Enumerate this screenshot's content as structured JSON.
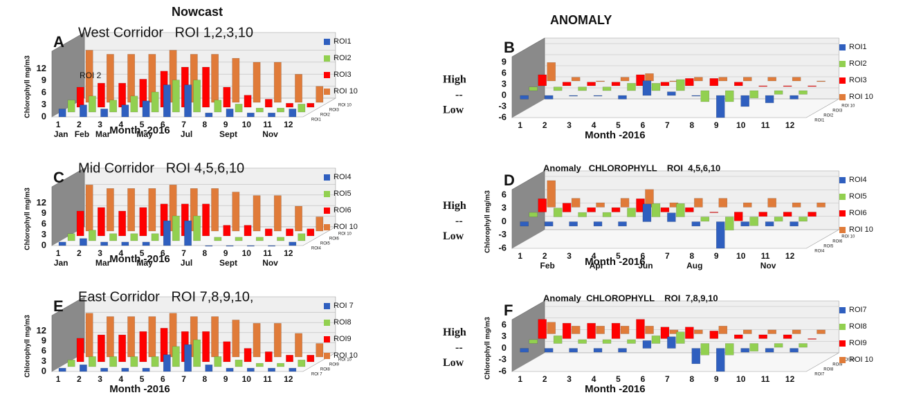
{
  "headers": {
    "nowcast": "Nowcast",
    "anomaly": "ANOMALY"
  },
  "chart_data": [
    {
      "type": "bar",
      "panel": "A",
      "title": "West Corridor   ROI 1,2,3,10",
      "ylabel": "Chlorophyll mg/m3",
      "xlabel": "Month -2016",
      "categories": [
        "1",
        "2",
        "3",
        "4",
        "5",
        "6",
        "7",
        "8",
        "9",
        "10",
        "11",
        "12"
      ],
      "months": [
        "Jan",
        "Feb",
        "Mar",
        null,
        "May",
        null,
        "Jul",
        null,
        "Sept",
        null,
        "Nov",
        null
      ],
      "annotations": [
        "ROI 2"
      ],
      "series": [
        {
          "name": "ROI1",
          "color": "#2f5fbf",
          "values": [
            2,
            3,
            2,
            3,
            4,
            8,
            8,
            1,
            2,
            1,
            1,
            2
          ]
        },
        {
          "name": "ROI2",
          "color": "#92d050",
          "values": [
            3,
            4,
            3,
            4,
            5,
            8,
            8,
            3,
            2,
            1,
            1,
            2
          ]
        },
        {
          "name": "ROI3",
          "color": "#ff0000",
          "values": [
            5,
            6,
            6,
            7,
            9,
            10,
            10,
            5,
            3,
            2,
            1,
            1
          ]
        },
        {
          "name": "ROI 10",
          "color": "#e07b39",
          "values": [
            13,
            12,
            12,
            12,
            13,
            12,
            12,
            11,
            10,
            10,
            7,
            4
          ]
        }
      ],
      "ylim": [
        0,
        15
      ],
      "yticks": [
        0,
        3,
        6,
        9,
        12
      ]
    },
    {
      "type": "bar",
      "panel": "B",
      "xlabel": "Month -2016",
      "categories": [
        "1",
        "2",
        "3",
        "4",
        "5",
        "6",
        "7",
        "8",
        "9",
        "10",
        "11",
        "12"
      ],
      "annotations": [
        "High",
        "--",
        "Low"
      ],
      "series": [
        {
          "name": "ROI1",
          "color": "#2f5fbf",
          "values": [
            -1,
            -1,
            0,
            0,
            -1,
            4,
            1,
            0,
            -6,
            -3,
            -2,
            -1
          ]
        },
        {
          "name": "ROI2",
          "color": "#92d050",
          "values": [
            1,
            1,
            1,
            1,
            2,
            2,
            3,
            -3,
            -3,
            -2,
            -1,
            -1
          ]
        },
        {
          "name": "ROI3",
          "color": "#ff0000",
          "values": [
            3,
            1,
            1,
            1,
            3,
            1,
            2,
            2,
            1,
            0,
            0,
            0
          ]
        },
        {
          "name": "ROI 10",
          "color": "#e07b39",
          "values": [
            5,
            1,
            0,
            1,
            2,
            0,
            1,
            1,
            1,
            1,
            1,
            0
          ]
        }
      ],
      "ylim": [
        -6,
        9
      ],
      "yticks": [
        -6,
        -3,
        0,
        3,
        6,
        9
      ]
    },
    {
      "type": "bar",
      "panel": "C",
      "title": "Mid Corridor   ROI 4,5,6,10",
      "ylabel": "Chlorophyll mg/m3",
      "xlabel": "Month -2016",
      "categories": [
        "1",
        "2",
        "3",
        "4",
        "5",
        "6",
        "7",
        "8",
        "9",
        "10",
        "11",
        "12"
      ],
      "months": [
        "Jan",
        null,
        "Mar",
        null,
        "May",
        null,
        "Jul",
        null,
        "Sept",
        null,
        "Nov",
        null
      ],
      "series": [
        {
          "name": "ROI4",
          "color": "#2f5fbf",
          "values": [
            1,
            2,
            1,
            1,
            1,
            7,
            7,
            0,
            0,
            0,
            0,
            1
          ]
        },
        {
          "name": "ROI5",
          "color": "#92d050",
          "values": [
            2,
            3,
            2,
            2,
            2,
            7,
            7,
            1,
            1,
            1,
            1,
            2
          ]
        },
        {
          "name": "ROI6",
          "color": "#ff0000",
          "values": [
            7,
            8,
            7,
            8,
            9,
            9,
            9,
            3,
            3,
            2,
            2,
            2
          ]
        },
        {
          "name": "ROI 10",
          "color": "#e07b39",
          "values": [
            13,
            12,
            12,
            12,
            13,
            12,
            12,
            11,
            10,
            10,
            7,
            4
          ]
        }
      ],
      "ylim": [
        0,
        15
      ],
      "yticks": [
        0,
        3,
        6,
        9,
        12
      ]
    },
    {
      "type": "bar",
      "panel": "D",
      "title": "Anomaly   CHLOROPHYLL    ROI  4,5,6,10",
      "ylabel": "Chlorophyll mg/m3",
      "xlabel": "Month -2016",
      "categories": [
        "1",
        "2",
        "3",
        "4",
        "5",
        "6",
        "7",
        "8",
        "9",
        "10",
        "11",
        "12"
      ],
      "months": [
        null,
        "Feb",
        null,
        "Apr",
        null,
        "Jun",
        null,
        "Aug",
        null,
        null,
        "Nov",
        null
      ],
      "annotations": [
        "High",
        "--",
        "Low"
      ],
      "series": [
        {
          "name": "ROI4",
          "color": "#2f5fbf",
          "values": [
            -1,
            -1,
            -1,
            -1,
            -1,
            4,
            2,
            -1,
            -6,
            -1,
            -1,
            -1
          ]
        },
        {
          "name": "ROI5",
          "color": "#92d050",
          "values": [
            1,
            2,
            1,
            1,
            2,
            3,
            3,
            -1,
            -3,
            -2,
            -1,
            -1
          ]
        },
        {
          "name": "ROI6",
          "color": "#ff0000",
          "values": [
            3,
            2,
            1,
            1,
            3,
            1,
            1,
            0,
            -2,
            -1,
            -1,
            -1
          ]
        },
        {
          "name": "ROI 10",
          "color": "#e07b39",
          "values": [
            6,
            2,
            1,
            2,
            4,
            1,
            2,
            2,
            1,
            2,
            1,
            1
          ]
        }
      ],
      "ylim": [
        -6,
        6
      ],
      "yticks": [
        -6,
        -3,
        0,
        3,
        6
      ]
    },
    {
      "type": "bar",
      "panel": "E",
      "title": "East Corridor   ROI 7,8,9,10,",
      "ylabel": "Chlorophyll mg/m3",
      "xlabel": "Month -2016",
      "categories": [
        "1",
        "2",
        "3",
        "4",
        "5",
        "6",
        "7",
        "8",
        "9",
        "10",
        "11",
        "12"
      ],
      "series": [
        {
          "name": "ROI 7",
          "color": "#2f5fbf",
          "values": [
            1,
            2,
            1,
            1,
            1,
            5,
            8,
            2,
            1,
            1,
            1,
            1
          ]
        },
        {
          "name": "ROI8",
          "color": "#92d050",
          "values": [
            2,
            3,
            3,
            3,
            3,
            6,
            8,
            3,
            2,
            1,
            1,
            2
          ]
        },
        {
          "name": "ROI9",
          "color": "#ff0000",
          "values": [
            7,
            8,
            8,
            9,
            10,
            9,
            9,
            6,
            4,
            3,
            2,
            2
          ]
        },
        {
          "name": "ROI 10",
          "color": "#e07b39",
          "values": [
            13,
            12,
            12,
            12,
            13,
            12,
            12,
            11,
            10,
            10,
            7,
            4
          ]
        }
      ],
      "ylim": [
        0,
        15
      ],
      "yticks": [
        0,
        3,
        6,
        9,
        12
      ]
    },
    {
      "type": "bar",
      "panel": "F",
      "title": "Anomaly  CHLOROPHYLL    ROI  7,8,9,10",
      "ylabel": "Chlorophyll mg/m3",
      "xlabel": "Month -2016",
      "categories": [
        "1",
        "2",
        "3",
        "4",
        "5",
        "6",
        "7",
        "8",
        "9",
        "10",
        "11",
        "12"
      ],
      "annotations": [
        "High",
        "--",
        "Low"
      ],
      "series": [
        {
          "name": "ROI7",
          "color": "#2f5fbf",
          "values": [
            -1,
            -1,
            -1,
            -1,
            -1,
            2,
            3,
            -4,
            -6,
            -1,
            -1,
            -1
          ]
        },
        {
          "name": "ROI8",
          "color": "#92d050",
          "values": [
            1,
            2,
            1,
            1,
            1,
            2,
            3,
            -3,
            -3,
            -2,
            -1,
            -1
          ]
        },
        {
          "name": "ROI9",
          "color": "#ff0000",
          "values": [
            5,
            4,
            4,
            4,
            5,
            3,
            3,
            2,
            1,
            1,
            1,
            0
          ]
        },
        {
          "name": "ROI 10",
          "color": "#e07b39",
          "values": [
            3,
            2,
            2,
            2,
            2,
            1,
            1,
            2,
            1,
            1,
            1,
            1
          ]
        }
      ],
      "ylim": [
        -6,
        6
      ],
      "yticks": [
        -6,
        -3,
        0,
        3,
        6
      ]
    }
  ]
}
